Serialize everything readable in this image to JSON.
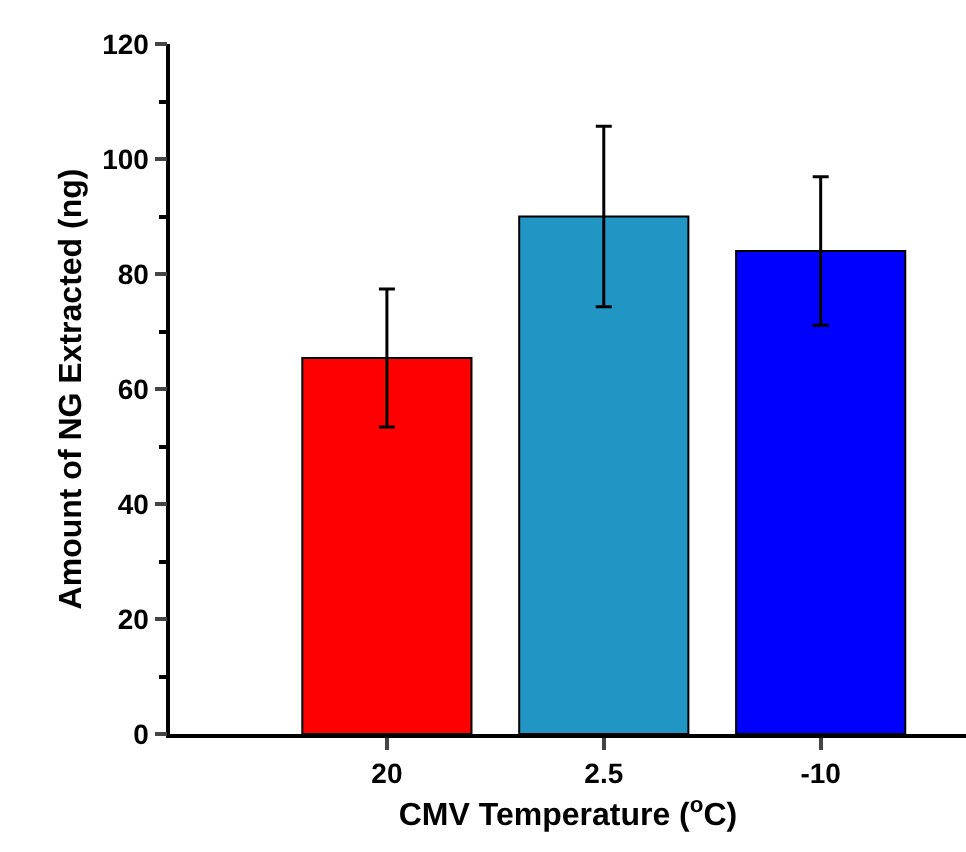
{
  "chart_data": {
    "type": "bar",
    "xlabel": "CMV Temperature ($^{o}$C)",
    "ylabel": "Amount of NG Extracted (ng)",
    "categories": [
      "20",
      "2.5",
      "-10"
    ],
    "values": [
      65.4,
      90.0,
      84.0
    ],
    "colors": [
      "#ff0000",
      "#2196c4",
      "#0000ff"
    ],
    "errors": [
      12.0,
      15.7,
      12.9
    ],
    "ylim": [
      0,
      120
    ],
    "yticks": [
      0,
      {
        "value": 10,
        "label": null
      },
      20,
      {
        "value": 30,
        "label": null
      },
      40,
      {
        "value": 50,
        "label": null
      },
      60,
      {
        "value": 70,
        "label": null
      },
      80,
      {
        "value": 90,
        "label": null
      },
      100,
      {
        "value": 110,
        "label": null
      },
      120
    ]
  }
}
